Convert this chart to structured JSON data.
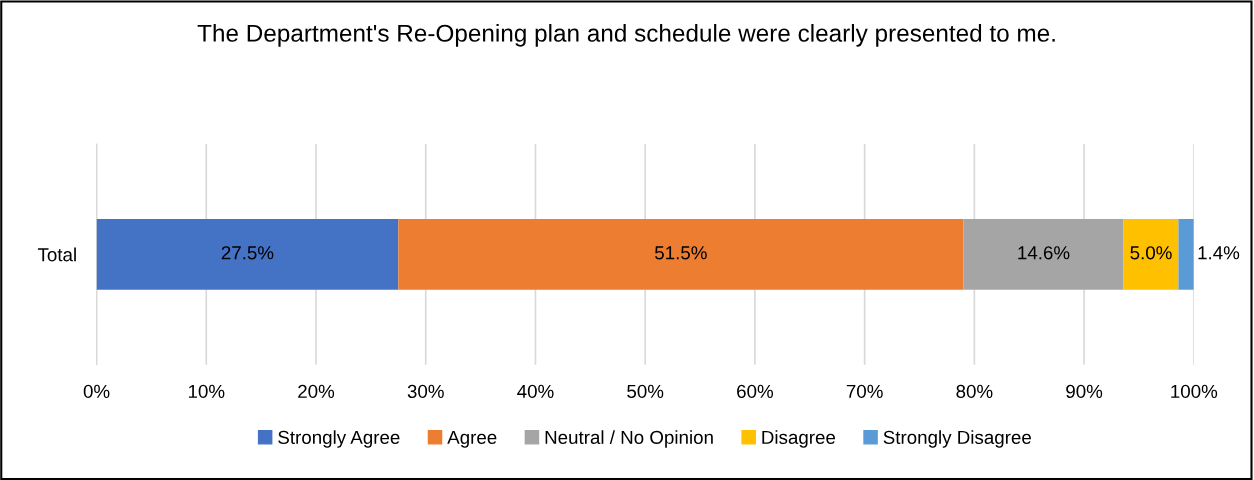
{
  "chart_data": {
    "type": "bar",
    "orientation": "horizontal",
    "stacked": true,
    "title": "The Department's Re-Opening plan and schedule were clearly presented to me.",
    "categories": [
      "Total"
    ],
    "series": [
      {
        "name": "Strongly Agree",
        "color": "#4472c4",
        "values": [
          27.5
        ],
        "value_labels": [
          "27.5%"
        ]
      },
      {
        "name": "Agree",
        "color": "#ed7d31",
        "values": [
          51.5
        ],
        "value_labels": [
          "51.5%"
        ]
      },
      {
        "name": "Neutral / No Opinion",
        "color": "#a5a5a5",
        "values": [
          14.6
        ],
        "value_labels": [
          "14.6%"
        ]
      },
      {
        "name": "Disagree",
        "color": "#ffc000",
        "values": [
          5.0
        ],
        "value_labels": [
          "5.0%"
        ]
      },
      {
        "name": "Strongly Disagree",
        "color": "#5b9bd5",
        "values": [
          1.4
        ],
        "value_labels": [
          "1.4%"
        ]
      }
    ],
    "xlim": [
      0,
      100
    ],
    "xticks": [
      {
        "value": 0,
        "label": "0%"
      },
      {
        "value": 10,
        "label": "10%"
      },
      {
        "value": 20,
        "label": "20%"
      },
      {
        "value": 30,
        "label": "30%"
      },
      {
        "value": 40,
        "label": "40%"
      },
      {
        "value": 50,
        "label": "50%"
      },
      {
        "value": 60,
        "label": "60%"
      },
      {
        "value": 70,
        "label": "70%"
      },
      {
        "value": 80,
        "label": "80%"
      },
      {
        "value": 90,
        "label": "90%"
      },
      {
        "value": 100,
        "label": "100%"
      }
    ],
    "grid": "x",
    "legend": "bottom"
  }
}
